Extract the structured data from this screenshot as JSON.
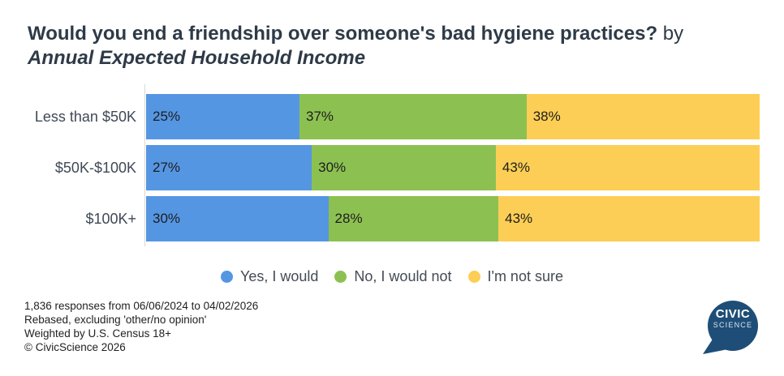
{
  "title": {
    "main": "Would you end a friendship over someone's bad hygiene practices?",
    "connector": " by",
    "subtitle": "Annual Expected Household Income"
  },
  "chart_data": {
    "type": "bar",
    "orientation": "horizontal",
    "stacked": true,
    "categories": [
      "Less than $50K",
      "$50K-$100K",
      "$100K+"
    ],
    "series": [
      {
        "name": "Yes, I would",
        "color": "#5596E3",
        "values": [
          25,
          27,
          30
        ]
      },
      {
        "name": "No, I would not",
        "color": "#8CC152",
        "values": [
          37,
          30,
          28
        ]
      },
      {
        "name": "I'm not sure",
        "color": "#FDCE55",
        "values": [
          38,
          43,
          43
        ]
      }
    ],
    "value_suffix": "%",
    "xlim": [
      0,
      100
    ],
    "grid": false,
    "legend_position": "bottom",
    "data_labels": "inside-start"
  },
  "footer": {
    "lines": [
      "1,836 responses from 06/06/2024 to 04/02/2026",
      "Rebased, excluding 'other/no opinion'",
      "Weighted by U.S. Census 18+",
      "© CivicScience 2026"
    ]
  },
  "logo": {
    "line1": "CIVIC",
    "line2": "SCIENCE",
    "bubble_color": "#1E4E77"
  }
}
